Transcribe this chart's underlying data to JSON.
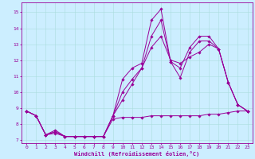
{
  "background_color": "#cceeff",
  "grid_color": "#aadddd",
  "line_color": "#990099",
  "xlim": [
    -0.5,
    23.5
  ],
  "ylim": [
    6.8,
    15.6
  ],
  "yticks": [
    7,
    8,
    9,
    10,
    11,
    12,
    13,
    14,
    15
  ],
  "xticks": [
    0,
    1,
    2,
    3,
    4,
    5,
    6,
    7,
    8,
    9,
    10,
    11,
    12,
    13,
    14,
    15,
    16,
    17,
    18,
    19,
    20,
    21,
    22,
    23
  ],
  "xlabel": "Windchill (Refroidissement éolien,°C)",
  "series": [
    [
      8.8,
      8.5,
      7.3,
      7.6,
      7.2,
      7.2,
      7.2,
      7.2,
      7.2,
      8.5,
      10.8,
      11.5,
      11.8,
      14.5,
      15.2,
      11.9,
      10.9,
      12.5,
      13.2,
      13.2,
      12.7,
      10.6,
      9.2,
      8.8
    ],
    [
      8.8,
      8.5,
      7.3,
      7.5,
      7.2,
      7.2,
      7.2,
      7.2,
      7.2,
      8.5,
      10.0,
      10.8,
      11.5,
      13.5,
      14.5,
      11.9,
      11.5,
      12.8,
      13.5,
      13.5,
      12.7,
      10.6,
      9.2,
      8.8
    ],
    [
      8.8,
      8.5,
      7.3,
      7.5,
      7.2,
      7.2,
      7.2,
      7.2,
      7.2,
      8.5,
      9.5,
      10.5,
      11.5,
      12.8,
      13.5,
      12.0,
      11.8,
      12.2,
      12.5,
      13.0,
      12.7,
      10.6,
      9.2,
      8.8
    ],
    [
      8.8,
      8.5,
      7.3,
      7.4,
      7.2,
      7.2,
      7.2,
      7.2,
      7.2,
      8.3,
      8.4,
      8.4,
      8.4,
      8.5,
      8.5,
      8.5,
      8.5,
      8.5,
      8.5,
      8.6,
      8.6,
      8.7,
      8.8,
      8.8
    ]
  ]
}
